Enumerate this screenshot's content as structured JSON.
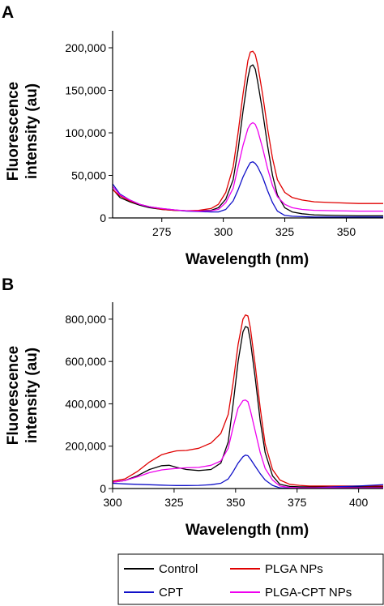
{
  "colors": {
    "control": "#000000",
    "plga_nps": "#e00000",
    "cpt": "#1010c8",
    "plga_cpt_nps": "#ee00ee"
  },
  "legend": [
    {
      "key": "control",
      "label": "Control"
    },
    {
      "key": "plga_nps",
      "label": "PLGA NPs"
    },
    {
      "key": "cpt",
      "label": "CPT"
    },
    {
      "key": "plga_cpt_nps",
      "label": "PLGA-CPT NPs"
    }
  ],
  "chart_data": [
    {
      "panel": "A",
      "type": "line",
      "xlabel": "Wavelength (nm)",
      "ylabel_line1": "Fluorescence",
      "ylabel_line2": "intensity (au)",
      "xlim": [
        255,
        365
      ],
      "ylim": [
        0,
        220000
      ],
      "xticks": [
        275,
        300,
        325,
        350
      ],
      "xtick_labels": [
        "275",
        "300",
        "325",
        "350"
      ],
      "yticks": [
        0,
        50000,
        100000,
        150000,
        200000
      ],
      "ytick_labels": [
        "0",
        "50,000",
        "100,000",
        "150,000",
        "200,000"
      ],
      "legend_position": "bottom",
      "series": [
        {
          "key": "control",
          "name": "Control",
          "x": [
            255,
            258,
            262,
            266,
            270,
            275,
            280,
            285,
            290,
            295,
            298,
            301,
            304,
            306,
            308,
            310,
            311,
            312,
            313,
            314,
            316,
            318,
            320,
            322,
            325,
            328,
            332,
            337,
            345,
            355,
            365
          ],
          "y": [
            34000,
            24000,
            19000,
            15000,
            12000,
            10000,
            9000,
            8500,
            8500,
            9000,
            12000,
            22000,
            45000,
            80000,
            125000,
            165000,
            178000,
            180000,
            175000,
            160000,
            125000,
            85000,
            50000,
            27000,
            12000,
            7000,
            5000,
            3500,
            3000,
            2500,
            2500
          ]
        },
        {
          "key": "plga_nps",
          "name": "PLGA NPs",
          "x": [
            255,
            258,
            262,
            266,
            270,
            275,
            280,
            285,
            290,
            295,
            298,
            301,
            304,
            306,
            308,
            310,
            311,
            312,
            313,
            314,
            316,
            318,
            320,
            322,
            325,
            328,
            332,
            337,
            345,
            355,
            365
          ],
          "y": [
            33000,
            26000,
            20000,
            16000,
            13000,
            10000,
            9000,
            8500,
            9000,
            11000,
            16000,
            30000,
            60000,
            100000,
            145000,
            185000,
            195000,
            196000,
            192000,
            180000,
            145000,
            105000,
            70000,
            45000,
            30000,
            24000,
            21000,
            19000,
            18000,
            17000,
            17000
          ]
        },
        {
          "key": "cpt",
          "name": "CPT",
          "x": [
            255,
            258,
            262,
            266,
            270,
            275,
            280,
            285,
            290,
            295,
            298,
            301,
            304,
            306,
            308,
            310,
            311,
            312,
            313,
            314,
            316,
            318,
            320,
            322,
            325,
            328,
            332,
            337,
            345,
            355,
            365
          ],
          "y": [
            40000,
            28000,
            21000,
            16000,
            13000,
            11000,
            9500,
            8000,
            7500,
            7000,
            7000,
            10000,
            20000,
            33000,
            48000,
            60000,
            65000,
            66000,
            64000,
            60000,
            48000,
            32000,
            18000,
            8000,
            3000,
            2000,
            1500,
            1000,
            1000,
            1000,
            1000
          ]
        },
        {
          "key": "plga_cpt_nps",
          "name": "PLGA-CPT NPs",
          "x": [
            255,
            258,
            262,
            266,
            270,
            275,
            280,
            285,
            290,
            295,
            298,
            301,
            304,
            306,
            308,
            310,
            311,
            312,
            313,
            314,
            316,
            318,
            320,
            322,
            325,
            328,
            332,
            337,
            345,
            355,
            365
          ],
          "y": [
            37000,
            27000,
            21000,
            16000,
            13000,
            11000,
            9500,
            8500,
            8000,
            8500,
            10000,
            18000,
            35000,
            60000,
            85000,
            105000,
            110000,
            112000,
            110000,
            103000,
            82000,
            58000,
            38000,
            25000,
            16000,
            12000,
            10000,
            9000,
            8500,
            8000,
            8000
          ]
        }
      ]
    },
    {
      "panel": "B",
      "type": "line",
      "xlabel": "Wavelength (nm)",
      "ylabel_line1": "Fluorescence",
      "ylabel_line2": "intensity (au)",
      "xlim": [
        300,
        410
      ],
      "ylim": [
        0,
        880000
      ],
      "xticks": [
        300,
        325,
        350,
        375,
        400
      ],
      "xtick_labels": [
        "300",
        "325",
        "350",
        "375",
        "400"
      ],
      "yticks": [
        0,
        200000,
        400000,
        600000,
        800000
      ],
      "ytick_labels": [
        "0",
        "200,000",
        "400,000",
        "600,000",
        "800,000"
      ],
      "legend_position": "bottom",
      "series": [
        {
          "key": "control",
          "name": "Control",
          "x": [
            300,
            305,
            310,
            315,
            320,
            323,
            326,
            330,
            335,
            340,
            344,
            347,
            349,
            351,
            353,
            354,
            355,
            356,
            358,
            360,
            362,
            365,
            368,
            372,
            376,
            380,
            390,
            400,
            410
          ],
          "y": [
            30000,
            38000,
            60000,
            90000,
            108000,
            110000,
            100000,
            90000,
            85000,
            90000,
            120000,
            220000,
            400000,
            600000,
            740000,
            765000,
            760000,
            700000,
            520000,
            320000,
            170000,
            60000,
            20000,
            10000,
            8000,
            8000,
            8000,
            8000,
            8000
          ]
        },
        {
          "key": "plga_nps",
          "name": "PLGA NPs",
          "x": [
            300,
            305,
            310,
            315,
            320,
            323,
            326,
            330,
            335,
            340,
            344,
            347,
            349,
            351,
            353,
            354,
            355,
            356,
            358,
            360,
            362,
            365,
            368,
            372,
            376,
            380,
            390,
            400,
            410
          ],
          "y": [
            35000,
            45000,
            80000,
            125000,
            160000,
            170000,
            178000,
            180000,
            190000,
            215000,
            260000,
            350000,
            500000,
            680000,
            800000,
            820000,
            815000,
            760000,
            580000,
            380000,
            210000,
            90000,
            40000,
            20000,
            15000,
            12000,
            12000,
            12000,
            12000
          ]
        },
        {
          "key": "cpt",
          "name": "CPT",
          "x": [
            300,
            305,
            310,
            315,
            320,
            323,
            326,
            330,
            335,
            340,
            344,
            347,
            349,
            351,
            353,
            354,
            355,
            356,
            358,
            360,
            362,
            365,
            368,
            372,
            376,
            380,
            390,
            400,
            410
          ],
          "y": [
            25000,
            22000,
            20000,
            18000,
            16000,
            15000,
            14000,
            14000,
            15000,
            18000,
            25000,
            45000,
            80000,
            120000,
            150000,
            158000,
            155000,
            140000,
            105000,
            70000,
            40000,
            15000,
            3000,
            2000,
            2000,
            2000,
            8000,
            12000,
            18000
          ]
        },
        {
          "key": "plga_cpt_nps",
          "name": "PLGA-CPT NPs",
          "x": [
            300,
            305,
            310,
            315,
            320,
            323,
            326,
            330,
            335,
            340,
            344,
            347,
            349,
            351,
            353,
            354,
            355,
            356,
            358,
            360,
            362,
            365,
            368,
            372,
            376,
            380,
            390,
            400,
            410
          ],
          "y": [
            30000,
            38000,
            55000,
            75000,
            88000,
            92000,
            95000,
            98000,
            100000,
            110000,
            130000,
            190000,
            290000,
            380000,
            415000,
            418000,
            410000,
            370000,
            270000,
            170000,
            95000,
            40000,
            12000,
            5000,
            4000,
            4000,
            4000,
            4000,
            4000
          ]
        }
      ]
    }
  ]
}
